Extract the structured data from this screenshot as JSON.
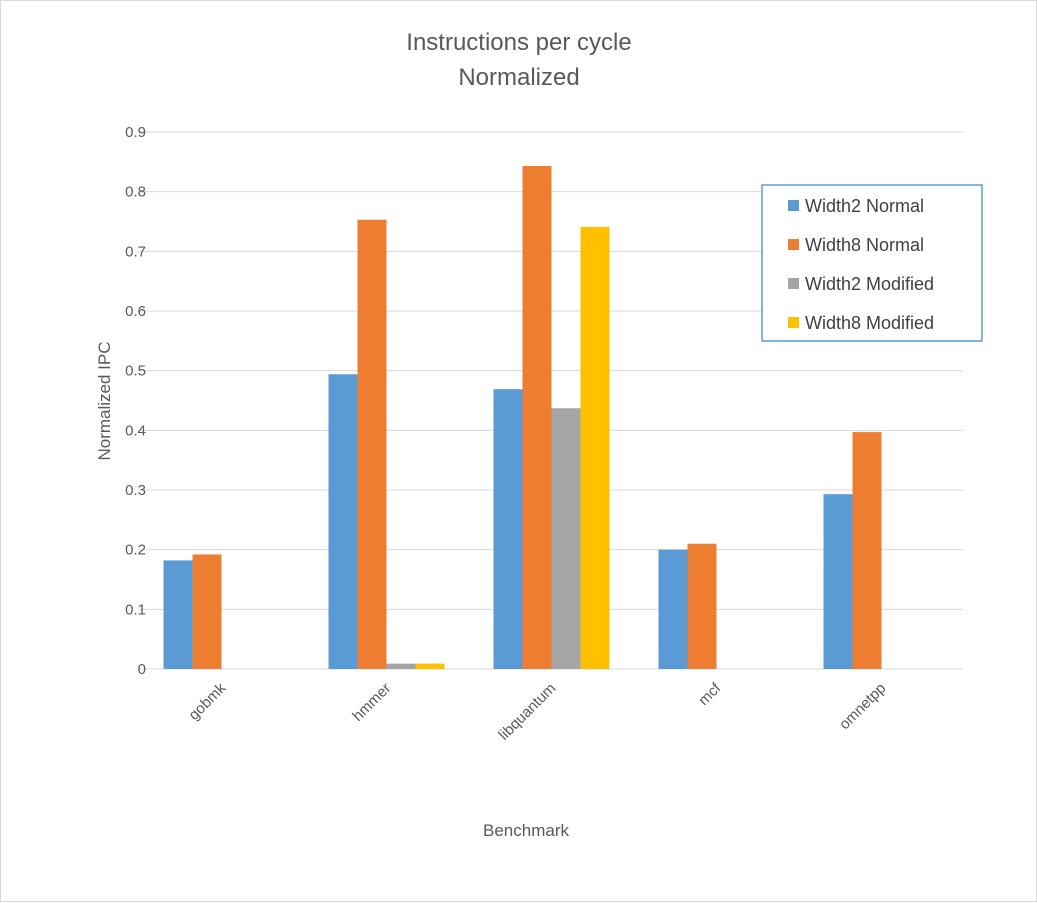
{
  "chart_data": {
    "type": "bar",
    "title": "Instructions per cycle",
    "subtitle": "Normalized",
    "xlabel": "Benchmark",
    "ylabel": "Normalized IPC",
    "ylim": [
      0,
      0.9
    ],
    "yticks": [
      "0",
      "0.1",
      "0.2",
      "0.3",
      "0.4",
      "0.5",
      "0.6",
      "0.7",
      "0.8",
      "0.9"
    ],
    "grid": true,
    "legend_position": "top-right",
    "categories": [
      "gobmk",
      "hmmer",
      "libquantum",
      "mcf",
      "omnetpp"
    ],
    "series": [
      {
        "name": "Width2 Normal",
        "color": "#5b9bd5",
        "values": [
          0.182,
          0.494,
          0.469,
          0.2,
          0.293
        ]
      },
      {
        "name": "Width8 Normal",
        "color": "#ed7d31",
        "values": [
          0.192,
          0.753,
          0.843,
          0.21,
          0.397
        ]
      },
      {
        "name": "Width2 Modified",
        "color": "#a5a5a5",
        "values": [
          0,
          0.009,
          0.437,
          0,
          0
        ]
      },
      {
        "name": "Width8 Modified",
        "color": "#ffc000",
        "values": [
          0,
          0.009,
          0.741,
          0,
          0
        ]
      }
    ]
  }
}
